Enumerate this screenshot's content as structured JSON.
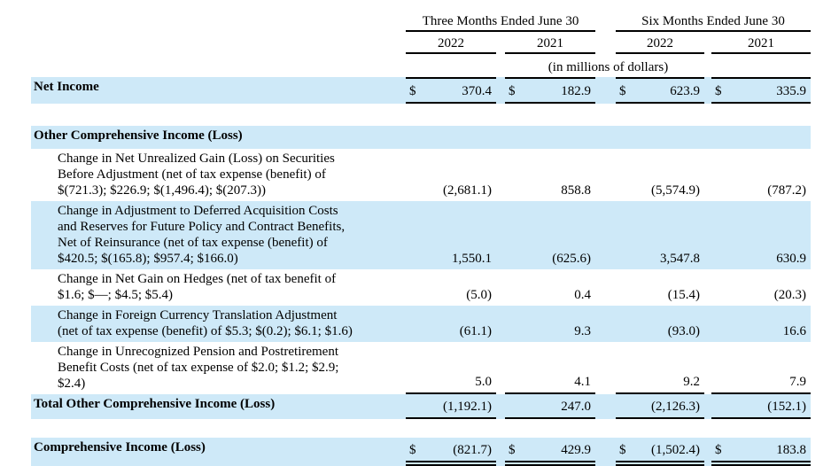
{
  "colors": {
    "row_highlight": "#cee9f8",
    "rule": "#000000",
    "text": "#000000",
    "background": "#ffffff"
  },
  "currency_symbol": "$",
  "header": {
    "group1": "Three Months Ended June 30",
    "group2": "Six Months Ended June 30",
    "col_years": [
      "2022",
      "2021",
      "2022",
      "2021"
    ],
    "units_note": "(in millions of dollars)"
  },
  "rows": {
    "net_income": {
      "label": "Net Income",
      "values": [
        "370.4",
        "182.9",
        "623.9",
        "335.9"
      ]
    },
    "oci_header": {
      "label": "Other Comprehensive Income (Loss)"
    },
    "securities": {
      "label": "Change in Net Unrealized Gain (Loss) on Securities\nBefore Adjustment (net of tax expense (benefit) of\n$(721.3); $226.9; $(1,496.4); $(207.3))",
      "values": [
        "(2,681.1)",
        "858.8",
        "(5,574.9)",
        "(787.2)"
      ]
    },
    "dac": {
      "label": "Change in Adjustment to Deferred Acquisition Costs\nand Reserves for Future Policy and Contract Benefits,\nNet of Reinsurance (net of tax expense (benefit) of\n$420.5; $(165.8); $957.4; $166.0)",
      "values": [
        "1,550.1",
        "(625.6)",
        "3,547.8",
        "630.9"
      ]
    },
    "hedges": {
      "label": "Change in Net Gain on Hedges (net of tax benefit of\n$1.6; $—; $4.5; $5.4)",
      "values": [
        "(5.0)",
        "0.4",
        "(15.4)",
        "(20.3)"
      ]
    },
    "fx": {
      "label": "Change in Foreign Currency Translation Adjustment\n(net of tax expense (benefit) of $5.3; $(0.2); $6.1; $1.6)",
      "values": [
        "(61.1)",
        "9.3",
        "(93.0)",
        "16.6"
      ]
    },
    "pension": {
      "label": "Change in Unrecognized Pension and Postretirement\nBenefit Costs (net of tax expense of $2.0; $1.2; $2.9;\n$2.4)",
      "values": [
        "5.0",
        "4.1",
        "9.2",
        "7.9"
      ]
    },
    "total_oci": {
      "label": "Total Other Comprehensive Income (Loss)",
      "values": [
        "(1,192.1)",
        "247.0",
        "(2,126.3)",
        "(152.1)"
      ]
    },
    "comprehensive": {
      "label": "Comprehensive Income (Loss)",
      "values": [
        "(821.7)",
        "429.9",
        "(1,502.4)",
        "183.8"
      ]
    }
  }
}
